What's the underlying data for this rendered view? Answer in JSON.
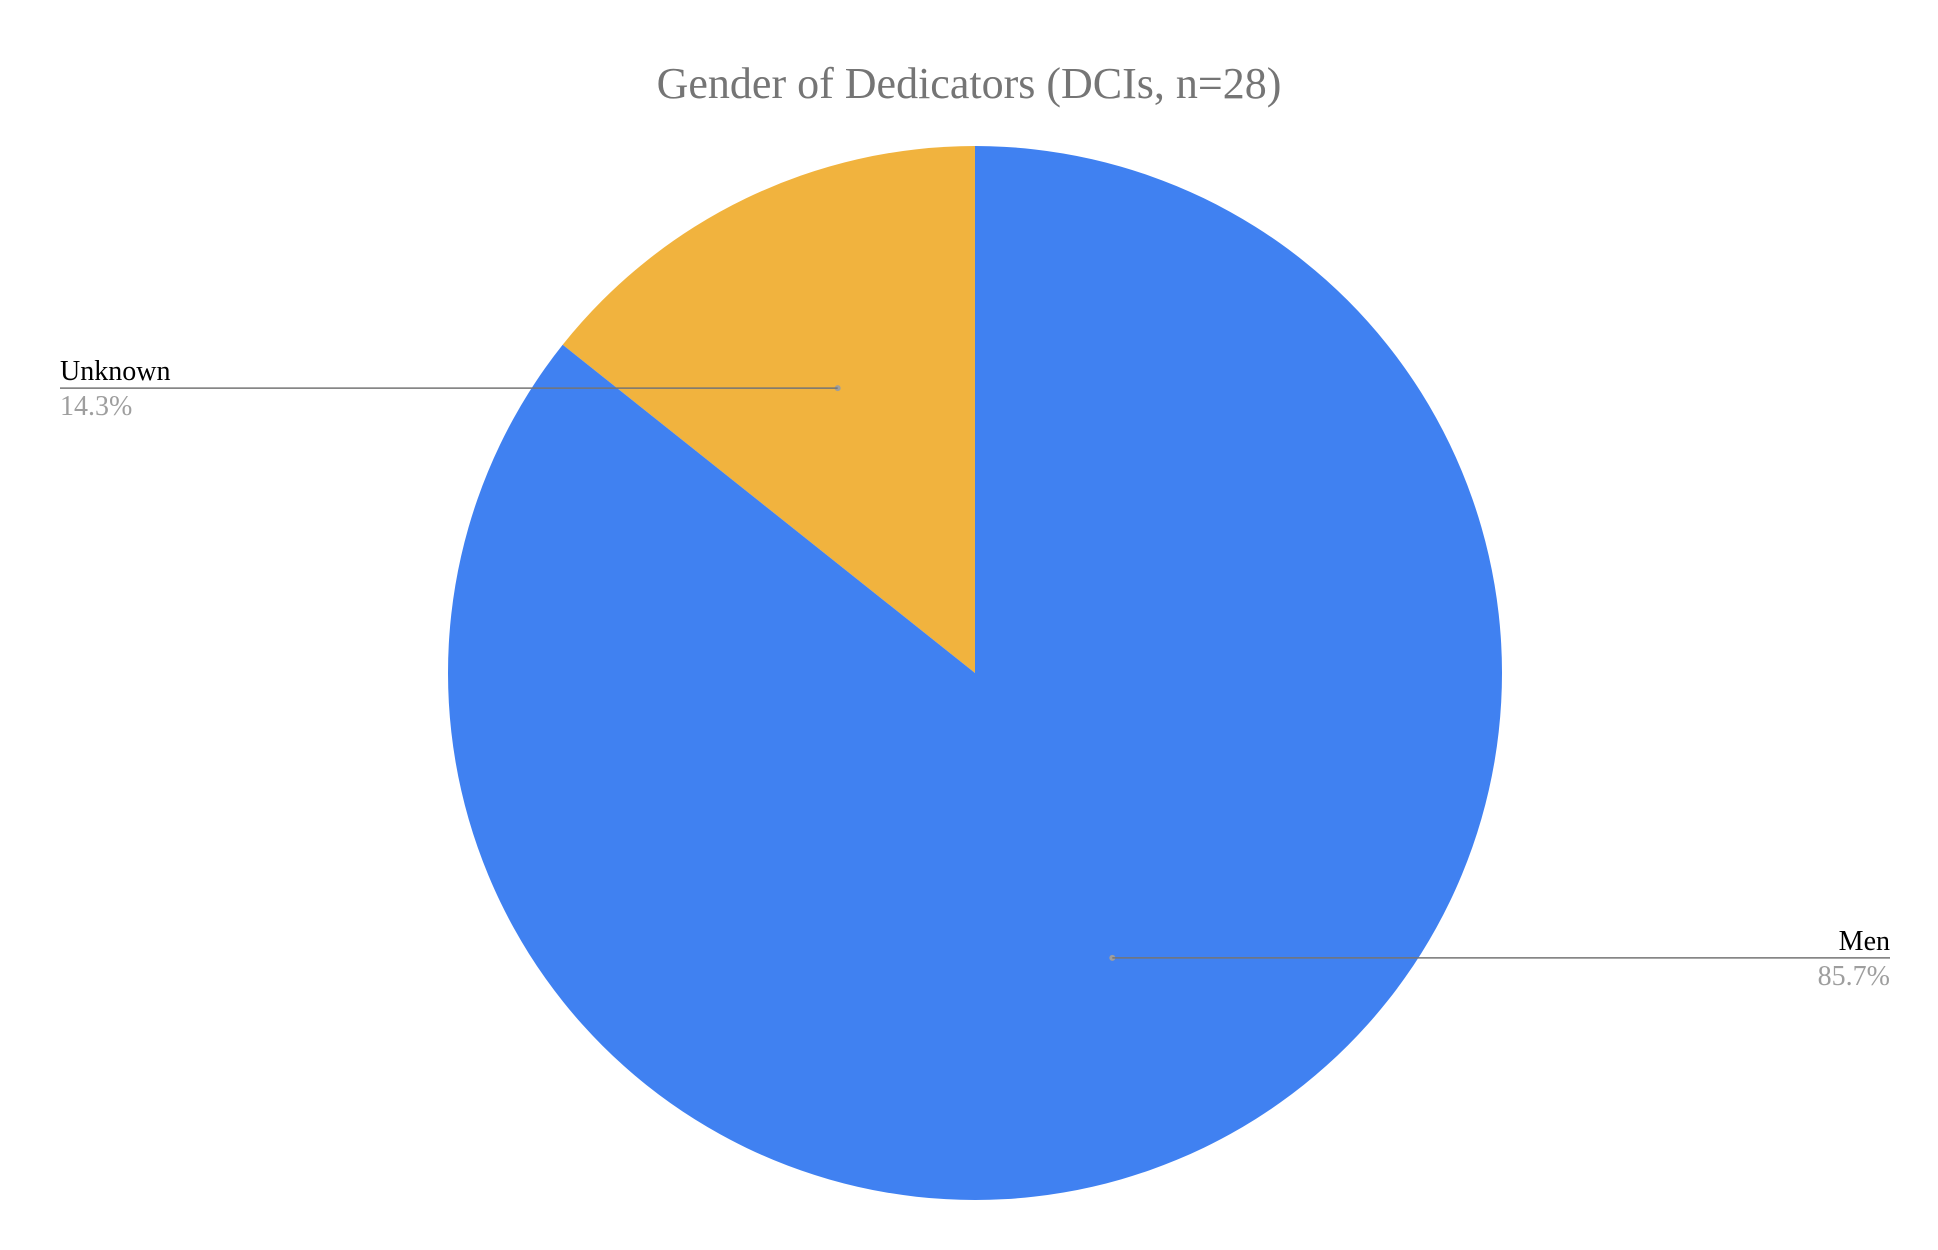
{
  "chart_data": {
    "type": "pie",
    "title": "Gender of Dedicators (DCIs, n=28)",
    "slices": [
      {
        "label": "Unknown",
        "value": 14.3,
        "value_label": "14.3%",
        "color": "#F1B33E"
      },
      {
        "label": "Men",
        "value": 85.7,
        "value_label": "85.7%",
        "color": "#4081F1"
      }
    ],
    "start_angle_deg": 0,
    "direction": "counterclockwise",
    "legend": "none",
    "label_style": "callout"
  },
  "colors": {
    "background": "#FFFFFF",
    "title": "#757575",
    "label": "#000000",
    "value": "#9E9E9E",
    "leader_line": "#757575"
  }
}
